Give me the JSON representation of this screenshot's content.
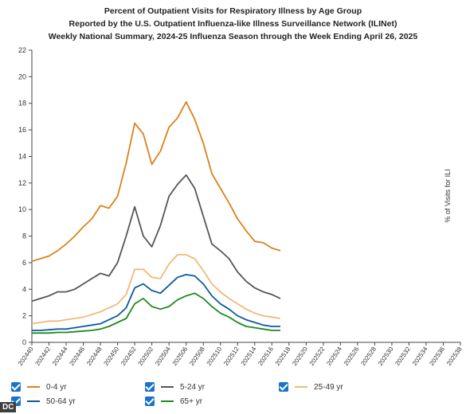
{
  "chart_data": {
    "type": "line",
    "title_lines": [
      "Percent of Outpatient Visits for Respiratory Illness by Age Group",
      "Reported by the U.S. Outpatient Influenza-like Illness Surveillance Network (ILINet)",
      "Weekly National Summary, 2024-25 Influenza Season through the Week Ending April 26, 2025"
    ],
    "ylabel": "% of Visits for ILI",
    "xlabel": "",
    "ylim": [
      0,
      22
    ],
    "yticks": [
      0,
      2,
      4,
      6,
      8,
      10,
      12,
      14,
      16,
      18,
      20,
      22
    ],
    "x_ticks": [
      "202440",
      "202442",
      "202444",
      "202446",
      "202448",
      "202450",
      "202452",
      "202502",
      "202504",
      "202506",
      "202508",
      "202510",
      "202512",
      "202514",
      "202516",
      "202518",
      "202520",
      "202522",
      "202524",
      "202526",
      "202528",
      "202530",
      "202532",
      "202534",
      "202536",
      "202538"
    ],
    "x_weeks": [
      "202440",
      "202441",
      "202442",
      "202443",
      "202444",
      "202445",
      "202446",
      "202447",
      "202448",
      "202449",
      "202450",
      "202451",
      "202452",
      "202501",
      "202502",
      "202503",
      "202504",
      "202505",
      "202506",
      "202507",
      "202508",
      "202509",
      "202510",
      "202511",
      "202512",
      "202513",
      "202514",
      "202515",
      "202516",
      "202517"
    ],
    "legend_placement": "bottom",
    "series": [
      {
        "name": "0-4 yr",
        "color": "#d9821a",
        "values": [
          6.1,
          6.3,
          6.5,
          6.9,
          7.4,
          8.0,
          8.7,
          9.3,
          10.3,
          10.1,
          11.0,
          13.5,
          16.5,
          15.7,
          13.4,
          14.4,
          16.2,
          16.9,
          18.1,
          16.8,
          15.0,
          12.7,
          11.6,
          10.5,
          9.3,
          8.4,
          7.6,
          7.5,
          7.1,
          6.9
        ]
      },
      {
        "name": "5-24 yr",
        "color": "#555555",
        "values": [
          3.1,
          3.3,
          3.5,
          3.8,
          3.8,
          4.0,
          4.4,
          4.8,
          5.2,
          5.0,
          6.0,
          8.0,
          10.2,
          8.0,
          7.2,
          8.8,
          11.0,
          11.9,
          12.6,
          11.6,
          9.5,
          7.4,
          6.9,
          6.3,
          5.3,
          4.6,
          4.1,
          3.8,
          3.6,
          3.3
        ]
      },
      {
        "name": "25-49 yr",
        "color": "#f0b97a",
        "values": [
          1.4,
          1.5,
          1.6,
          1.6,
          1.7,
          1.8,
          1.9,
          2.1,
          2.3,
          2.6,
          2.9,
          3.6,
          5.5,
          5.5,
          4.9,
          4.8,
          5.9,
          6.6,
          6.6,
          6.3,
          5.4,
          4.4,
          3.8,
          3.3,
          2.9,
          2.5,
          2.2,
          2.0,
          1.9,
          1.8
        ]
      },
      {
        "name": "50-64 yr",
        "color": "#0a5aa0",
        "values": [
          0.9,
          0.9,
          0.95,
          1.0,
          1.0,
          1.1,
          1.2,
          1.3,
          1.4,
          1.7,
          2.0,
          2.6,
          4.1,
          4.4,
          3.9,
          3.7,
          4.3,
          4.9,
          5.1,
          5.0,
          4.4,
          3.5,
          2.9,
          2.5,
          2.0,
          1.7,
          1.5,
          1.3,
          1.2,
          1.2
        ]
      },
      {
        "name": "65+ yr",
        "color": "#1e8a1e",
        "values": [
          0.7,
          0.7,
          0.7,
          0.75,
          0.75,
          0.8,
          0.85,
          0.9,
          1.0,
          1.2,
          1.5,
          1.8,
          2.9,
          3.3,
          2.7,
          2.5,
          2.7,
          3.2,
          3.5,
          3.7,
          3.3,
          2.7,
          2.2,
          1.9,
          1.5,
          1.2,
          1.1,
          1.0,
          0.9,
          0.9
        ]
      }
    ]
  },
  "watermark": "DC"
}
